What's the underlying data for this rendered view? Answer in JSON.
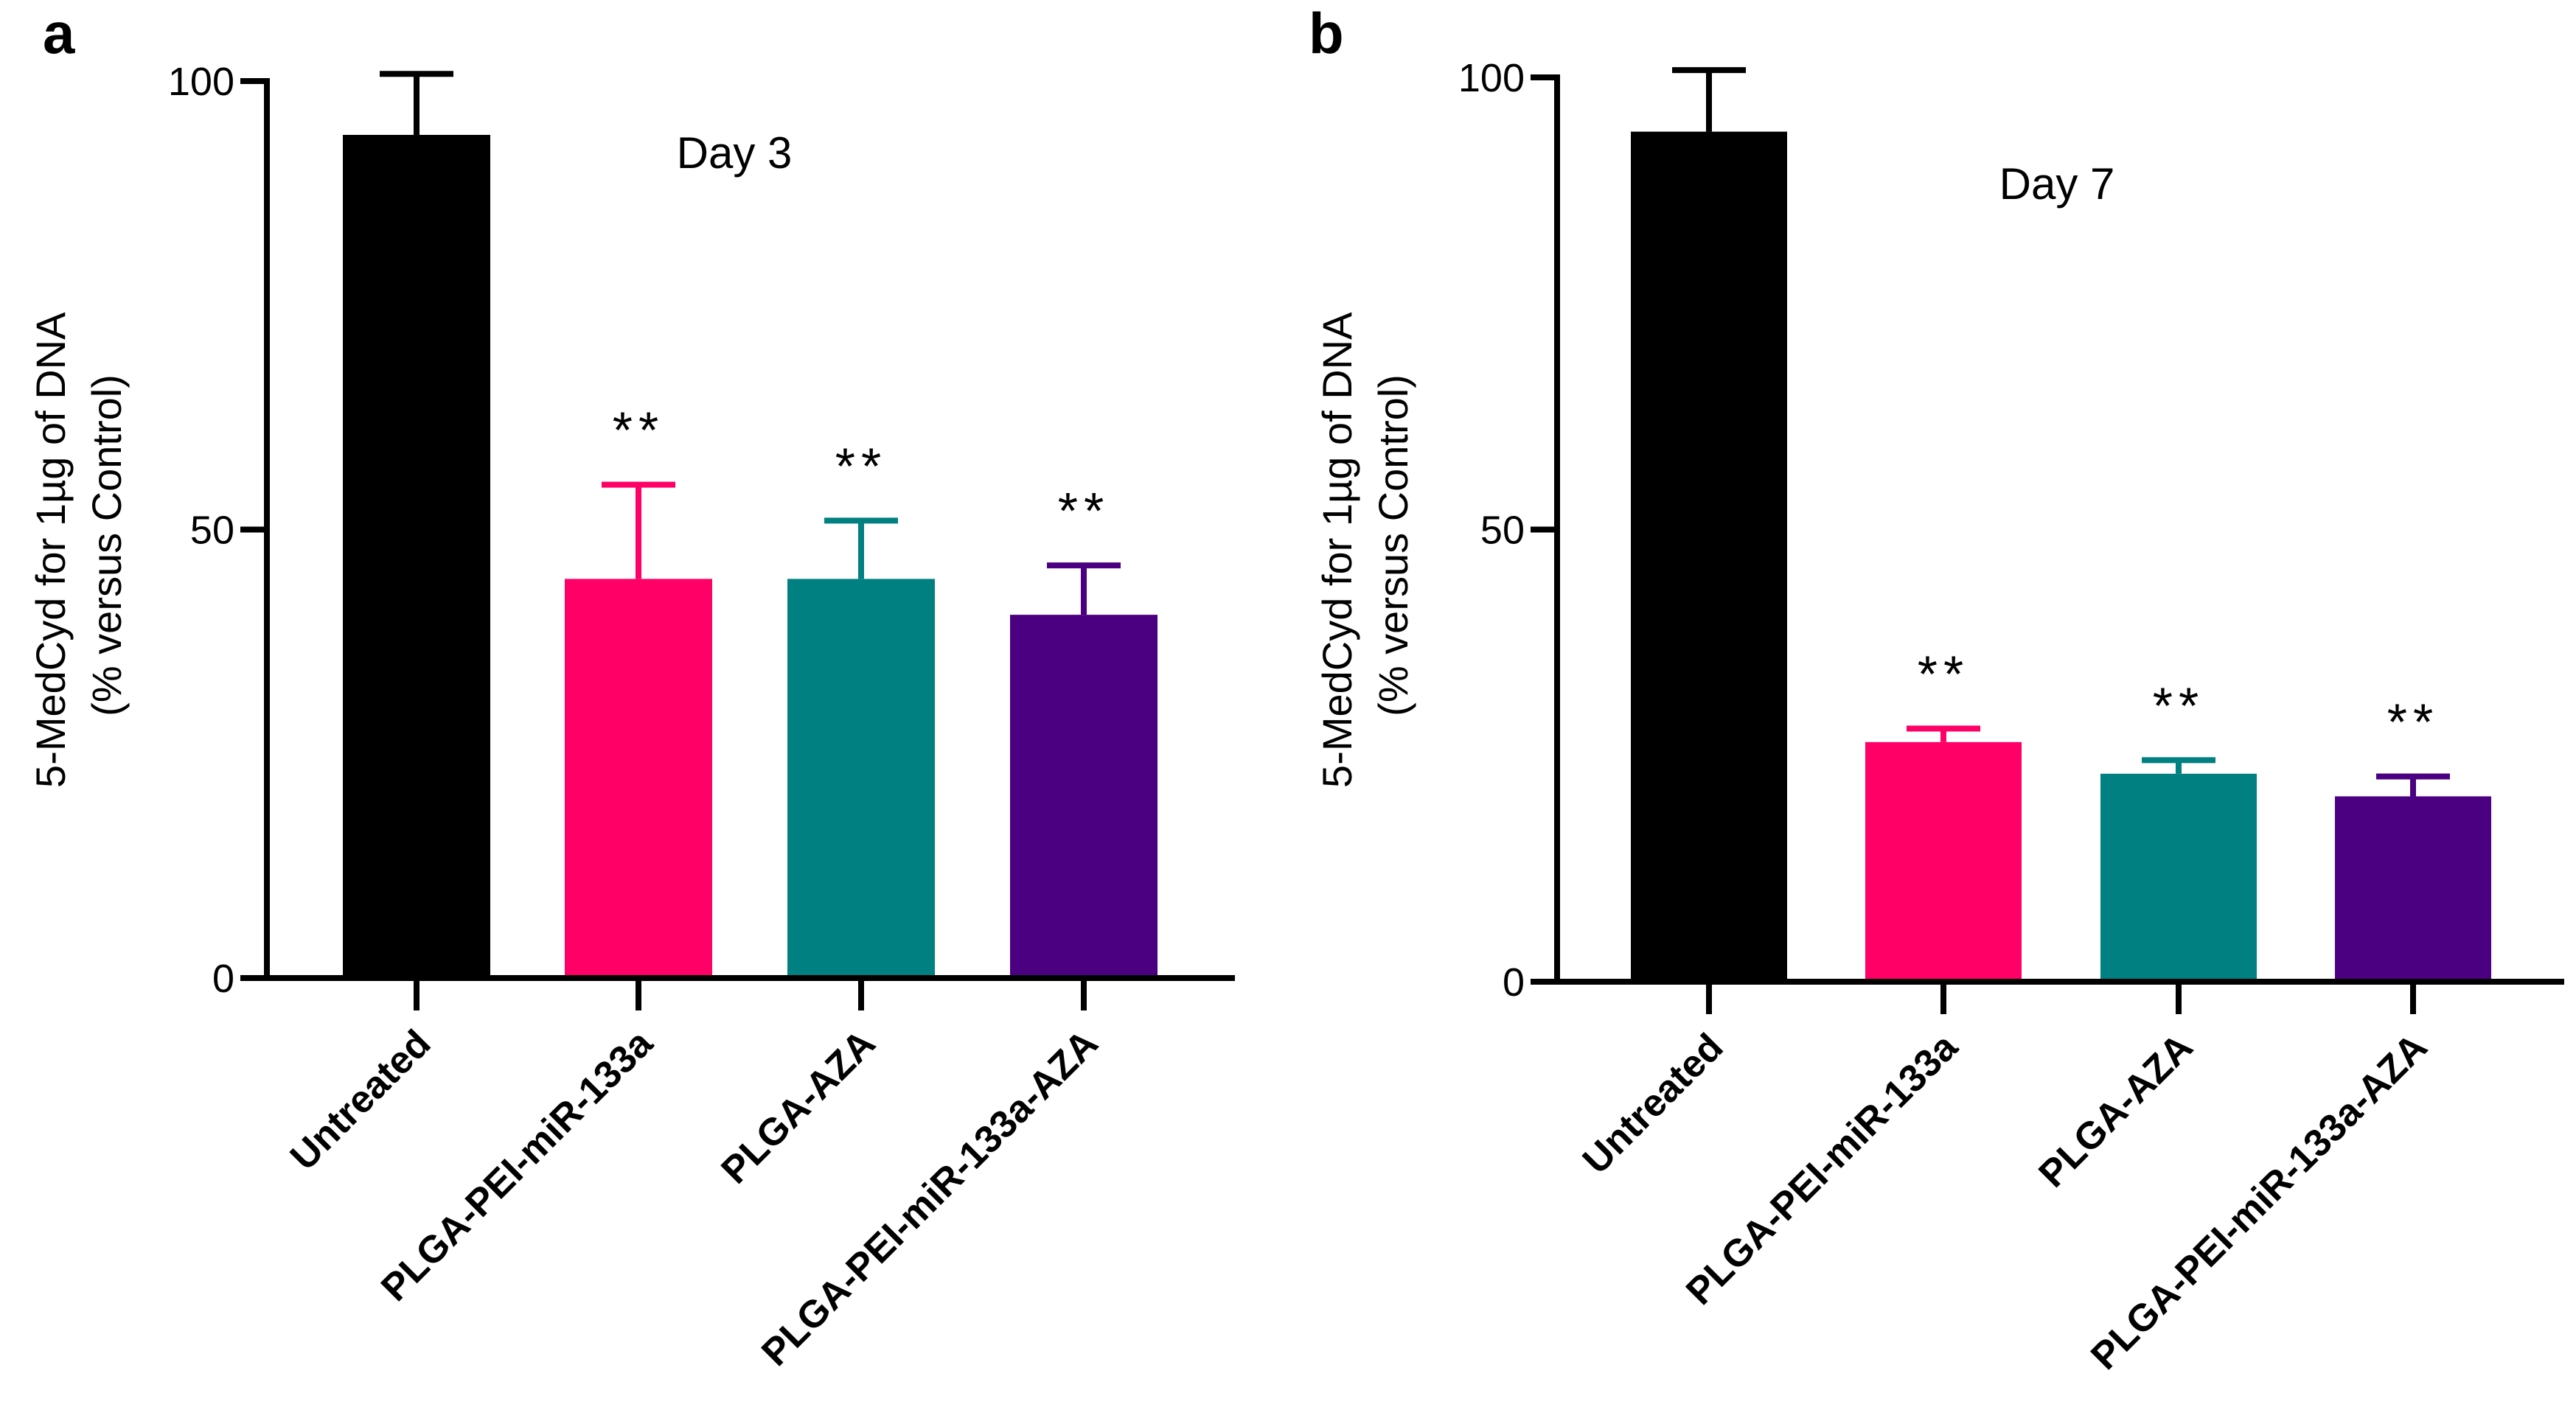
{
  "chart_data": [
    {
      "type": "bar",
      "panel": "a",
      "annotation": "Day 3",
      "ylabel_lines": [
        "5-MedCyd for 1µg of DNA",
        "(% versus Control)"
      ],
      "ylim": [
        0,
        100
      ],
      "yticks": [
        0,
        50,
        100
      ],
      "categories": [
        "Untreated",
        "PLGA-PEI-miR-133a",
        "PLGA-AZA",
        "PLGA-PEI-miR-133a-AZA"
      ],
      "values": [
        94,
        44.5,
        44.5,
        40.5
      ],
      "errors": [
        6.8,
        10.5,
        6.5,
        5.5
      ],
      "significance": [
        "",
        "**",
        "**",
        "**"
      ],
      "colors": [
        "#000000",
        "#ff0066",
        "#008080",
        "#4b0082"
      ]
    },
    {
      "type": "bar",
      "panel": "b",
      "annotation": "Day 7",
      "ylabel_lines": [
        "5-MedCyd for 1µg of DNA",
        "(% versus Control)"
      ],
      "ylim": [
        0,
        100
      ],
      "yticks": [
        0,
        50,
        100
      ],
      "categories": [
        "Untreated",
        "PLGA-PEI-miR-133a",
        "PLGA-AZA",
        "PLGA-PEI-miR-133a-AZA"
      ],
      "values": [
        94,
        26.5,
        23,
        20.5
      ],
      "errors": [
        6.8,
        1.5,
        1.5,
        2.2
      ],
      "significance": [
        "",
        "**",
        "**",
        "**"
      ],
      "colors": [
        "#000000",
        "#ff0066",
        "#008080",
        "#4b0082"
      ]
    }
  ]
}
